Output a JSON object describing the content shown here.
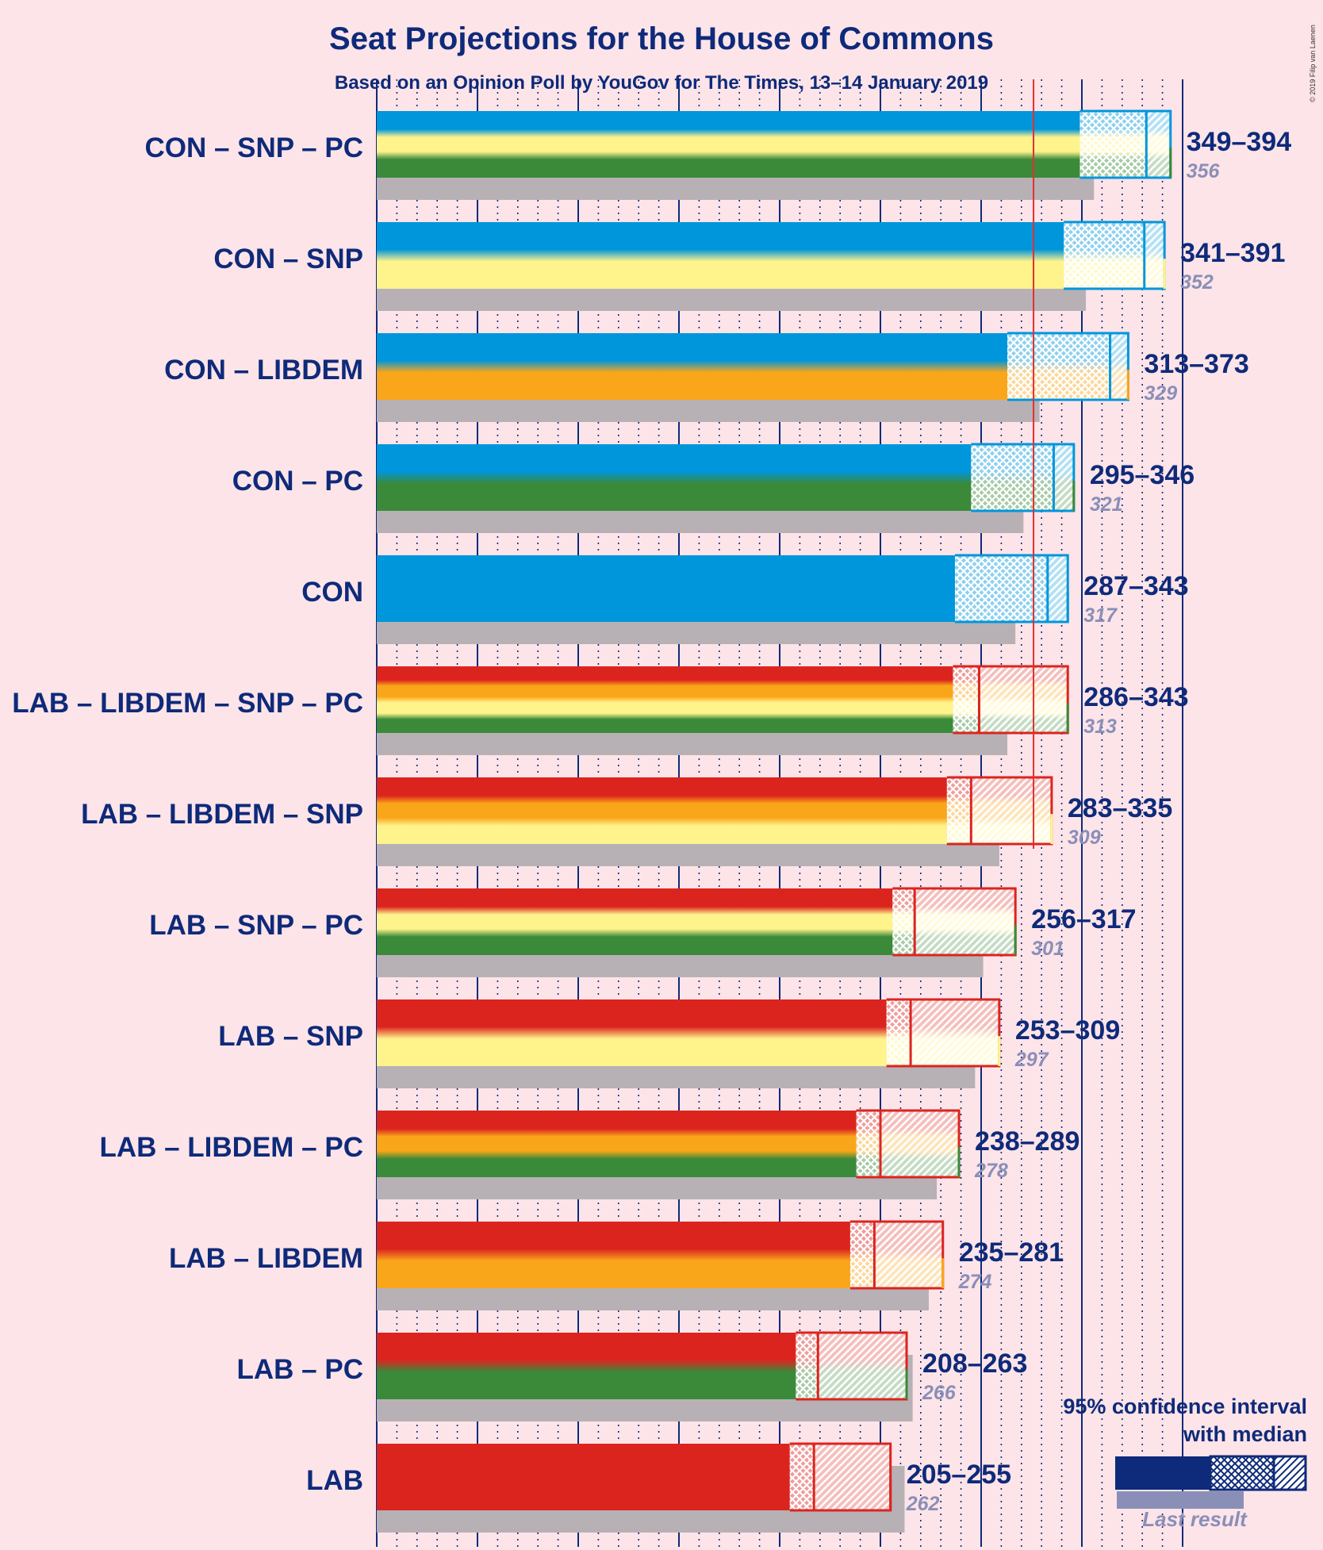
{
  "title": "Seat Projections for the House of Commons",
  "subtitle": "Based on an Opinion Poll by YouGov for The Times, 13–14 January 2019",
  "credit": "© 2019 Filip van Laenen",
  "legend": {
    "line1": "95% confidence interval",
    "line2": "with median",
    "last_result": "Last result"
  },
  "colors": {
    "CON": "#0096db",
    "LAB": "#dc241f",
    "LIBDEM": "#faa61a",
    "SNP": "#fff38c",
    "PC": "#3a8a3a",
    "navy": "#0e2a7a",
    "majority": "#e03030",
    "last": "#b7b1b5"
  },
  "chart_data": {
    "type": "bar",
    "xlim": [
      0,
      400
    ],
    "majority": 326,
    "rows": [
      {
        "name": "CON – SNP – PC",
        "parties": [
          "CON",
          "SNP",
          "PC"
        ],
        "low": 349,
        "median": 382,
        "high": 394,
        "range_label": "349–394",
        "last": 356
      },
      {
        "name": "CON – SNP",
        "parties": [
          "CON",
          "SNP"
        ],
        "low": 341,
        "median": 381,
        "high": 391,
        "range_label": "341–391",
        "last": 352
      },
      {
        "name": "CON – LIBDEM",
        "parties": [
          "CON",
          "LIBDEM"
        ],
        "low": 313,
        "median": 364,
        "high": 373,
        "range_label": "313–373",
        "last": 329
      },
      {
        "name": "CON – PC",
        "parties": [
          "CON",
          "PC"
        ],
        "low": 295,
        "median": 336,
        "high": 346,
        "range_label": "295–346",
        "last": 321
      },
      {
        "name": "CON",
        "parties": [
          "CON"
        ],
        "low": 287,
        "median": 333,
        "high": 343,
        "range_label": "287–343",
        "last": 317
      },
      {
        "name": "LAB – LIBDEM – SNP – PC",
        "parties": [
          "LAB",
          "LIBDEM",
          "SNP",
          "PC"
        ],
        "low": 286,
        "median": 299,
        "high": 343,
        "range_label": "286–343",
        "last": 313
      },
      {
        "name": "LAB – LIBDEM – SNP",
        "parties": [
          "LAB",
          "LIBDEM",
          "SNP"
        ],
        "low": 283,
        "median": 295,
        "high": 335,
        "range_label": "283–335",
        "last": 309
      },
      {
        "name": "LAB – SNP – PC",
        "parties": [
          "LAB",
          "SNP",
          "PC"
        ],
        "low": 256,
        "median": 267,
        "high": 317,
        "range_label": "256–317",
        "last": 301
      },
      {
        "name": "LAB – SNP",
        "parties": [
          "LAB",
          "SNP"
        ],
        "low": 253,
        "median": 265,
        "high": 309,
        "range_label": "253–309",
        "last": 297
      },
      {
        "name": "LAB – LIBDEM – PC",
        "parties": [
          "LAB",
          "LIBDEM",
          "PC"
        ],
        "low": 238,
        "median": 250,
        "high": 289,
        "range_label": "238–289",
        "last": 278
      },
      {
        "name": "LAB – LIBDEM",
        "parties": [
          "LAB",
          "LIBDEM"
        ],
        "low": 235,
        "median": 247,
        "high": 281,
        "range_label": "235–281",
        "last": 274
      },
      {
        "name": "LAB – PC",
        "parties": [
          "LAB",
          "PC"
        ],
        "low": 208,
        "median": 219,
        "high": 263,
        "range_label": "208–263",
        "last": 266
      },
      {
        "name": "LAB",
        "parties": [
          "LAB"
        ],
        "low": 205,
        "median": 217,
        "high": 255,
        "range_label": "205–255",
        "last": 262
      }
    ]
  }
}
